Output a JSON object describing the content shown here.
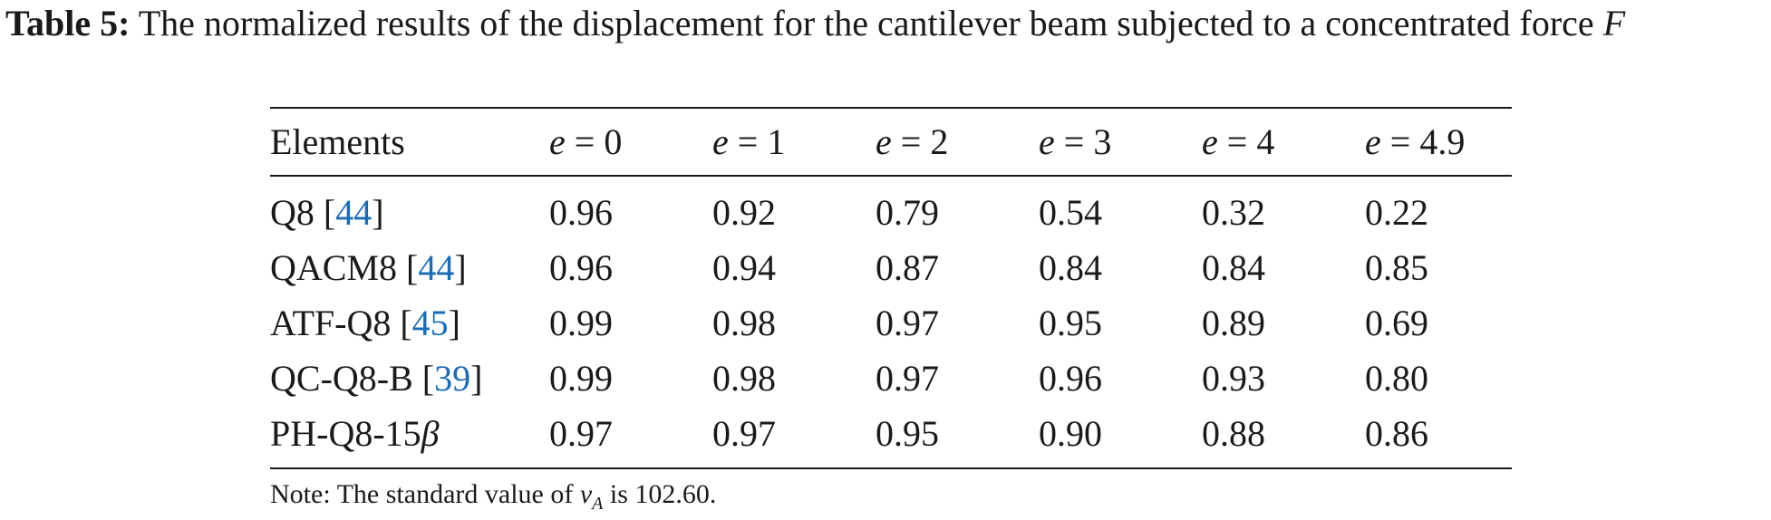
{
  "caption": {
    "label": "Table 5:",
    "text": " The normalized results of the displacement for the cantilever beam subjected to a concentrated force ",
    "symbol": "F"
  },
  "table": {
    "columns": [
      {
        "text": "Elements"
      },
      {
        "var": "e",
        "eq": " = ",
        "val": "0"
      },
      {
        "var": "e",
        "eq": " = ",
        "val": "1"
      },
      {
        "var": "e",
        "eq": " = ",
        "val": "2"
      },
      {
        "var": "e",
        "eq": " = ",
        "val": "3"
      },
      {
        "var": "e",
        "eq": " = ",
        "val": "4"
      },
      {
        "var": "e",
        "eq": " = ",
        "val": "4.9"
      }
    ],
    "rows": [
      {
        "name": "Q8 [",
        "ref": "44",
        "close": "]",
        "values": [
          "0.96",
          "0.92",
          "0.79",
          "0.54",
          "0.32",
          "0.22"
        ]
      },
      {
        "name": "QACM8 [",
        "ref": "44",
        "close": "]",
        "values": [
          "0.96",
          "0.94",
          "0.87",
          "0.84",
          "0.84",
          "0.85"
        ]
      },
      {
        "name": "ATF-Q8 [",
        "ref": "45",
        "close": "]",
        "values": [
          "0.99",
          "0.98",
          "0.97",
          "0.95",
          "0.89",
          "0.69"
        ]
      },
      {
        "name": "QC-Q8-B [",
        "ref": "39",
        "close": "]",
        "values": [
          "0.99",
          "0.98",
          "0.97",
          "0.96",
          "0.93",
          "0.80"
        ]
      },
      {
        "name": "PH-Q8-15",
        "beta": "β",
        "values": [
          "0.97",
          "0.97",
          "0.95",
          "0.90",
          "0.88",
          "0.86"
        ]
      }
    ]
  },
  "note": {
    "prefix": "Note: The standard value of ",
    "var": "v",
    "sub": "A",
    "suffix": " is 102.60."
  }
}
